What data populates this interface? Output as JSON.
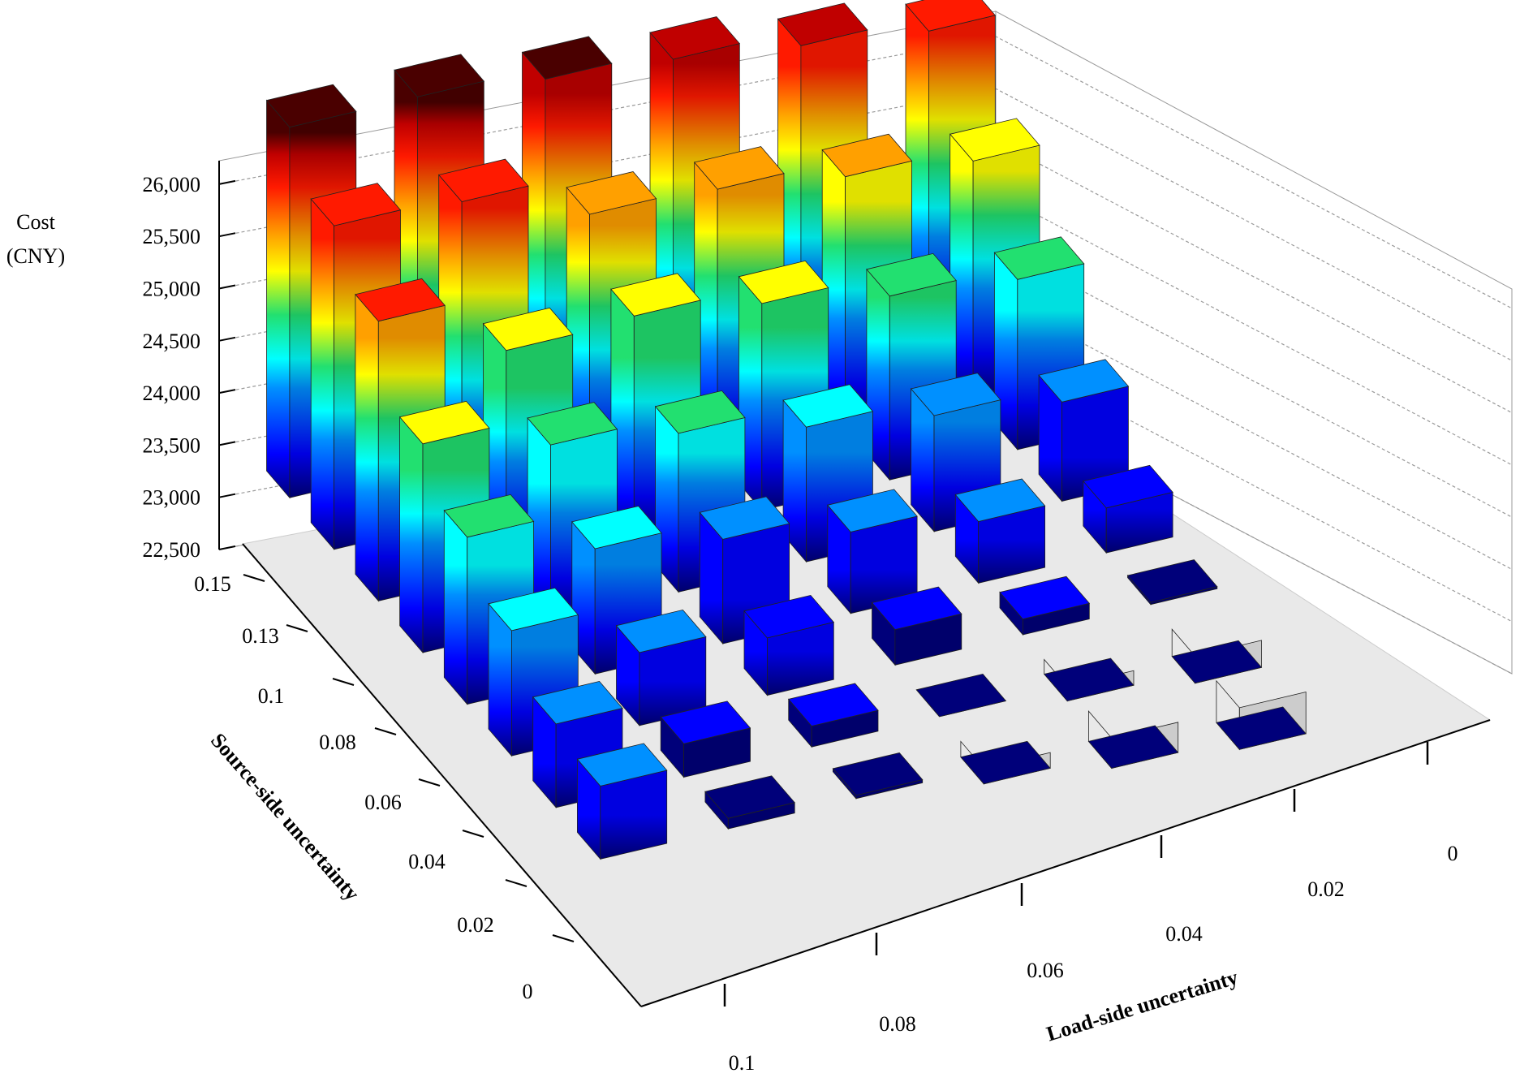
{
  "chart_data": {
    "type": "bar3d",
    "title": "",
    "zlabel_lines": [
      "Cost",
      "(CNY)"
    ],
    "xlabel": "Load-side uncertainty",
    "ylabel": "Source-side uncertainty",
    "z_range": [
      22500,
      26000
    ],
    "z_ticks": [
      "22,500",
      "23,000",
      "23,500",
      "24,000",
      "24,500",
      "25,000",
      "25,500",
      "26,000"
    ],
    "z_tick_values": [
      22500,
      23000,
      23500,
      24000,
      24500,
      25000,
      25500,
      26000
    ],
    "load_side_ticks": [
      "0.1",
      "0.08",
      "0.06",
      "0.04",
      "0.02",
      "0"
    ],
    "source_side_ticks": [
      "0.15",
      "0.13",
      "0.1",
      "0.08",
      "0.06",
      "0.04",
      "0.02",
      "0"
    ],
    "grid": true,
    "colormap": "jet",
    "values_note_rows": "source-side uncertainty 0.15 → 0",
    "values_note_cols": "load-side uncertainty 0.1 → 0",
    "values": [
      [
        26050,
        26050,
        25930,
        25830,
        25670,
        25520
      ],
      [
        25600,
        25540,
        25130,
        25080,
        24910,
        24770
      ],
      [
        25180,
        24610,
        24650,
        24480,
        24260,
        24130
      ],
      [
        24500,
        24200,
        24020,
        23790,
        23610,
        23450
      ],
      [
        24100,
        23700,
        23500,
        23280,
        23090,
        22930
      ],
      [
        23700,
        23200,
        23050,
        22840,
        22650,
        22520
      ],
      [
        23300,
        22820,
        22700,
        22500,
        22360,
        22240
      ],
      [
        23200,
        22600,
        22530,
        22350,
        22210,
        22100
      ]
    ]
  }
}
